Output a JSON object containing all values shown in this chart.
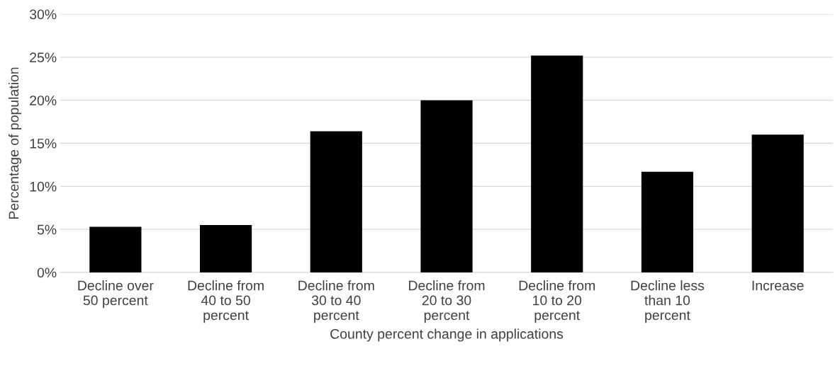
{
  "chart_data": {
    "type": "bar",
    "xlabel": "County percent change in applications",
    "ylabel": "Percentage of population",
    "categories": [
      "Decline over\n50 percent",
      "Decline from\n40 to 50\npercent",
      "Decline from\n30 to 40\npercent",
      "Decline from\n20 to 30\npercent",
      "Decline from\n10 to 20\npercent",
      "Decline less\nthan 10\npercent",
      "Increase"
    ],
    "values": [
      5.3,
      5.5,
      16.4,
      20.0,
      25.2,
      11.7,
      16.0
    ],
    "color": "#000000",
    "ylim": [
      0,
      30
    ],
    "yticks": [
      {
        "value": 0,
        "label": "0%"
      },
      {
        "value": 5,
        "label": "5%"
      },
      {
        "value": 10,
        "label": "10%"
      },
      {
        "value": 15,
        "label": "15%"
      },
      {
        "value": 20,
        "label": "20%"
      },
      {
        "value": 25,
        "label": "25%"
      },
      {
        "value": 30,
        "label": "30%"
      }
    ],
    "grid": "y"
  }
}
